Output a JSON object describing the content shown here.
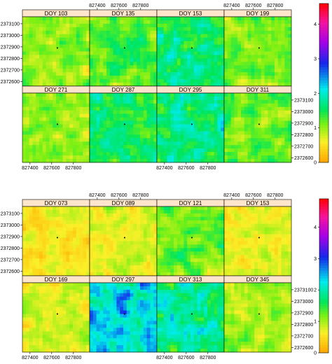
{
  "chart_data": [
    {
      "type": "heatmap",
      "title": "",
      "xlabel": "",
      "ylabel": "",
      "x_ticks": [
        "827400",
        "827600",
        "827800"
      ],
      "y_ticks": [
        "2373100",
        "2373000",
        "2372900",
        "2372800",
        "2372700",
        "2372600"
      ],
      "x_range": [
        827330,
        827950
      ],
      "y_range": [
        2372560,
        2373160
      ],
      "colorbar": {
        "range": [
          0,
          4.6
        ],
        "ticks": [
          "0",
          "1",
          "2",
          "3",
          "4"
        ]
      },
      "panels": [
        {
          "label": "DOY 103",
          "mean": 1.0
        },
        {
          "label": "DOY 135",
          "mean": 1.3
        },
        {
          "label": "DOY 153",
          "mean": 1.6
        },
        {
          "label": "DOY 199",
          "mean": 1.1
        },
        {
          "label": "DOY 271",
          "mean": 1.0
        },
        {
          "label": "DOY 287",
          "mean": 1.5
        },
        {
          "label": "DOY 295",
          "mean": 1.7
        },
        {
          "label": "DOY 311",
          "mean": 1.2
        }
      ]
    },
    {
      "type": "heatmap",
      "title": "",
      "xlabel": "",
      "ylabel": "",
      "x_ticks": [
        "827400",
        "827600",
        "827800"
      ],
      "y_ticks": [
        "2373100",
        "2373000",
        "2372900",
        "2372800",
        "2372700",
        "2372600"
      ],
      "x_range": [
        827330,
        827950
      ],
      "y_range": [
        2372560,
        2373160
      ],
      "colorbar": {
        "range": [
          0,
          4.9
        ],
        "ticks": [
          "0",
          "1",
          "2",
          "3",
          "4"
        ]
      },
      "panels": [
        {
          "label": "DOY 073",
          "mean": 0.55
        },
        {
          "label": "DOY 089",
          "mean": 0.75
        },
        {
          "label": "DOY 121",
          "mean": 1.2
        },
        {
          "label": "DOY 153",
          "mean": 0.7
        },
        {
          "label": "DOY 169",
          "mean": 0.8
        },
        {
          "label": "DOY 297",
          "mean": 2.2
        },
        {
          "label": "DOY 313",
          "mean": 1.9
        },
        {
          "label": "DOY 345",
          "mean": 1.0
        }
      ]
    }
  ]
}
